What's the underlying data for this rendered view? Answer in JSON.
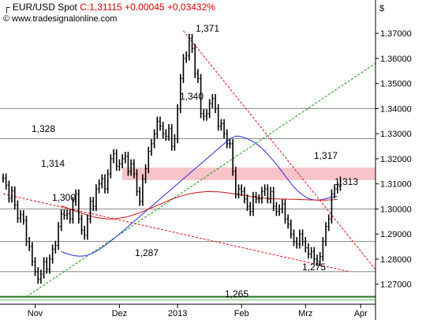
{
  "header": {
    "symbol_icon": "candlestick-icon",
    "symbol": "EUR/USD Spot",
    "quote": "C:1,31115 +0.00045 +0,03432%",
    "copyright_symbol": "©",
    "source": "www.tradesignalonline.com"
  },
  "chart_data": {
    "type": "line",
    "title": "EUR/USD Spot",
    "axis_unit_label": "$",
    "ylim": [
      1.262,
      1.377
    ],
    "y_ticks": [
      "1.37000",
      "1.36000",
      "1.35000",
      "1.34000",
      "1.33000",
      "1.32000",
      "1.31000",
      "1.30000",
      "1.29000",
      "1.28000",
      "1.27000"
    ],
    "x_tick_labels": [
      "Nov",
      "Dez",
      "2013",
      "Feb",
      "Mrz",
      "Apr"
    ],
    "x_tick_index": [
      11,
      40,
      60,
      82,
      104,
      123
    ],
    "colors": {
      "price": "#000000",
      "ma_fast": "#2b2bdd",
      "ma_slow": "#cc1111",
      "downtrend": "#dd1111",
      "uptrend": "#119911",
      "zone": "#f7b8c0",
      "support": "#1b7a1b",
      "grid": "#888888"
    },
    "horizontal_levels": [
      1.34,
      1.328,
      1.3,
      1.287,
      1.275
    ],
    "support_level": 1.265,
    "resistance_zone": [
      1.3115,
      1.3165
    ],
    "annotations": [
      "1,371",
      "1,340",
      "1,328",
      "1,317",
      "1,314",
      "1,313",
      "1,300",
      "1,287",
      "1,275",
      "1,265"
    ],
    "series": [
      {
        "name": "EUR/USD Spot",
        "values": [
          1.3123,
          1.3095,
          1.3043,
          1.3072,
          1.3016,
          1.2963,
          1.2977,
          1.2955,
          1.287,
          1.285,
          1.279,
          1.275,
          1.272,
          1.274,
          1.279,
          1.276,
          1.28,
          1.284,
          1.2855,
          1.293,
          1.298,
          1.2975,
          1.298,
          1.296,
          1.303,
          1.306,
          1.296,
          1.2915,
          1.2895,
          1.296,
          1.303,
          1.301,
          1.308,
          1.31,
          1.312,
          1.308,
          1.314,
          1.32,
          1.322,
          1.317,
          1.318,
          1.32,
          1.321,
          1.315,
          1.318,
          1.314,
          1.307,
          1.303,
          1.312,
          1.316,
          1.323,
          1.326,
          1.33,
          1.335,
          1.333,
          1.33,
          1.329,
          1.332,
          1.325,
          1.328,
          1.34,
          1.352,
          1.36,
          1.361,
          1.368,
          1.364,
          1.354,
          1.352,
          1.338,
          1.337,
          1.338,
          1.342,
          1.344,
          1.34,
          1.333,
          1.334,
          1.33,
          1.326,
          1.326,
          1.315,
          1.306,
          1.308,
          1.307,
          1.304,
          1.301,
          1.299,
          1.305,
          1.304,
          1.304,
          1.307,
          1.308,
          1.304,
          1.307,
          1.301,
          1.299,
          1.3,
          1.302,
          1.296,
          1.294,
          1.29,
          1.287,
          1.286,
          1.29,
          1.287,
          1.2845,
          1.282,
          1.283,
          1.28,
          1.279,
          1.281,
          1.287,
          1.293,
          1.296,
          1.306,
          1.308,
          1.309,
          1.3111
        ]
      },
      {
        "name": "MA fast",
        "values": [
          1.283,
          1.2825,
          1.2822,
          1.2818,
          1.2815,
          1.2813,
          1.2812,
          1.2812,
          1.2813,
          1.2816,
          1.282,
          1.2825,
          1.2831,
          1.2838,
          1.2846,
          1.2854,
          1.2863,
          1.2872,
          1.2881,
          1.289,
          1.29,
          1.291,
          1.292,
          1.293,
          1.294,
          1.295,
          1.296,
          1.297,
          1.298,
          1.299,
          1.3,
          1.301,
          1.302,
          1.303,
          1.304,
          1.305,
          1.306,
          1.307,
          1.308,
          1.309,
          1.31,
          1.311,
          1.312,
          1.313,
          1.314,
          1.315,
          1.316,
          1.317,
          1.318,
          1.319,
          1.32,
          1.321,
          1.322,
          1.323,
          1.324,
          1.325,
          1.326,
          1.327,
          1.328,
          1.3285,
          1.329,
          1.329,
          1.3288,
          1.3284,
          1.328,
          1.3274,
          1.3268,
          1.326,
          1.3252,
          1.3242,
          1.323,
          1.3218,
          1.3205,
          1.3192,
          1.3178,
          1.3163,
          1.3148,
          1.3132,
          1.3117,
          1.3102,
          1.3088,
          1.3075,
          1.3065,
          1.3056,
          1.3048,
          1.3042,
          1.3038,
          1.3036,
          1.3035,
          1.3036,
          1.3038,
          1.3041,
          1.3044,
          1.3047,
          1.3049,
          1.305
        ]
      },
      {
        "name": "MA slow",
        "values": [
          1.3012,
          1.3008,
          1.3004,
          1.3,
          1.2995,
          1.2991,
          1.2987,
          1.2983,
          1.2979,
          1.2975,
          1.2972,
          1.2969,
          1.2966,
          1.2964,
          1.2962,
          1.2961,
          1.296,
          1.296,
          1.296,
          1.2961,
          1.2963,
          1.2965,
          1.2967,
          1.297,
          1.2973,
          1.2977,
          1.2981,
          1.2985,
          1.2989,
          1.2994,
          1.2999,
          1.3004,
          1.3009,
          1.3014,
          1.3019,
          1.3024,
          1.3029,
          1.3034,
          1.3039,
          1.3043,
          1.3047,
          1.3051,
          1.3054,
          1.3057,
          1.306,
          1.3062,
          1.3064,
          1.3066,
          1.3067,
          1.3068,
          1.3069,
          1.3069,
          1.3069,
          1.3068,
          1.3068,
          1.3067,
          1.3066,
          1.3064,
          1.3063,
          1.3061,
          1.3059,
          1.3058,
          1.3056,
          1.3054,
          1.3052,
          1.305,
          1.3048,
          1.3046,
          1.3045,
          1.3044,
          1.3043,
          1.3042,
          1.3041,
          1.3041,
          1.304,
          1.304,
          1.3039,
          1.3039,
          1.3039,
          1.3038,
          1.3038,
          1.3038,
          1.3037,
          1.3037,
          1.3037,
          1.3036,
          1.3036,
          1.3036,
          1.3035,
          1.3035,
          1.3035,
          1.3035,
          1.3036,
          1.3036,
          1.3037,
          1.3038
        ]
      }
    ],
    "ma_fast_start_index": 20,
    "ma_slow_start_index": 20,
    "trendlines": [
      {
        "name": "downtrend",
        "from": [
          0,
          1.306
        ],
        "to": [
          119,
          1.275
        ]
      },
      {
        "name": "uptrend",
        "from": [
          8,
          1.265
        ],
        "to": [
          128,
          1.358
        ]
      },
      {
        "name": "downtrend-2",
        "from": [
          62,
          1.371
        ],
        "to": [
          128,
          1.276
        ]
      }
    ]
  }
}
